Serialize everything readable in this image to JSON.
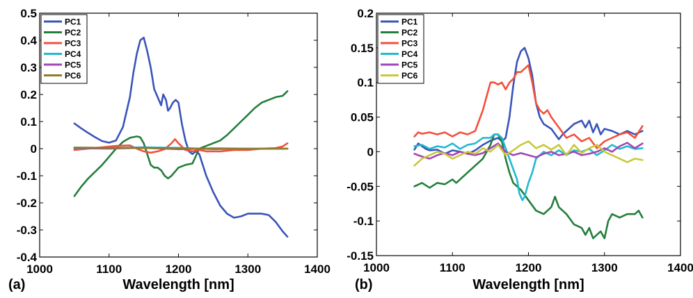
{
  "chart_data": [
    {
      "type": "line",
      "panel_label": "(a)",
      "xlabel": "Wavelength [nm]",
      "ylabel": "",
      "xlim": [
        1000,
        1400
      ],
      "ylim": [
        -0.4,
        0.5
      ],
      "xticks": [
        1000,
        1100,
        1200,
        1300,
        1400
      ],
      "xtick_labels": [
        "1000",
        "1100",
        "1200",
        "1300",
        "1400"
      ],
      "yticks": [
        -0.4,
        -0.3,
        -0.2,
        -0.1,
        0,
        0.1,
        0.2,
        0.3,
        0.4,
        0.5
      ],
      "ytick_labels": [
        "-0.4",
        "-0.3",
        "-0.2",
        "-0.1",
        "0",
        "0.1",
        "0.2",
        "0.3",
        "0.4",
        "0.5"
      ],
      "grid": false,
      "legend_position": "top-left",
      "series": [
        {
          "name": "PC1",
          "color": "#3a53b9",
          "x": [
            1050,
            1060,
            1070,
            1080,
            1090,
            1100,
            1110,
            1120,
            1130,
            1135,
            1140,
            1145,
            1150,
            1155,
            1160,
            1165,
            1170,
            1175,
            1178,
            1182,
            1185,
            1188,
            1192,
            1196,
            1200,
            1205,
            1210,
            1215,
            1220,
            1225,
            1230,
            1240,
            1250,
            1260,
            1270,
            1280,
            1290,
            1300,
            1310,
            1320,
            1330,
            1340,
            1350,
            1357
          ],
          "y": [
            0.093,
            0.075,
            0.058,
            0.042,
            0.028,
            0.022,
            0.03,
            0.08,
            0.19,
            0.28,
            0.35,
            0.4,
            0.41,
            0.36,
            0.3,
            0.22,
            0.19,
            0.16,
            0.2,
            0.18,
            0.14,
            0.15,
            0.17,
            0.18,
            0.17,
            0.09,
            0.03,
            -0.01,
            -0.02,
            -0.01,
            -0.02,
            -0.1,
            -0.16,
            -0.21,
            -0.24,
            -0.255,
            -0.25,
            -0.24,
            -0.24,
            -0.24,
            -0.245,
            -0.27,
            -0.305,
            -0.325
          ]
        },
        {
          "name": "PC2",
          "color": "#237e3a",
          "x": [
            1050,
            1060,
            1070,
            1080,
            1090,
            1100,
            1110,
            1120,
            1130,
            1140,
            1145,
            1150,
            1155,
            1160,
            1165,
            1170,
            1175,
            1180,
            1185,
            1190,
            1195,
            1200,
            1210,
            1220,
            1230,
            1240,
            1250,
            1260,
            1270,
            1280,
            1290,
            1300,
            1310,
            1320,
            1330,
            1340,
            1350,
            1357
          ],
          "y": [
            -0.175,
            -0.14,
            -0.11,
            -0.085,
            -0.06,
            -0.03,
            0.0,
            0.025,
            0.04,
            0.045,
            0.042,
            0.02,
            -0.02,
            -0.06,
            -0.07,
            -0.07,
            -0.08,
            -0.1,
            -0.11,
            -0.1,
            -0.085,
            -0.07,
            -0.06,
            -0.055,
            0.0,
            0.01,
            0.02,
            0.03,
            0.05,
            0.075,
            0.1,
            0.125,
            0.15,
            0.17,
            0.18,
            0.19,
            0.195,
            0.212
          ]
        },
        {
          "name": "PC3",
          "color": "#f2503a",
          "x": [
            1050,
            1070,
            1090,
            1110,
            1130,
            1140,
            1150,
            1160,
            1170,
            1180,
            1190,
            1195,
            1200,
            1210,
            1220,
            1230,
            1240,
            1260,
            1280,
            1300,
            1320,
            1340,
            1350,
            1357
          ],
          "y": [
            -0.005,
            0.0,
            0.005,
            0.01,
            0.012,
            0.0,
            -0.01,
            -0.015,
            -0.01,
            -0.002,
            0.02,
            0.035,
            0.02,
            -0.005,
            -0.01,
            -0.005,
            -0.01,
            -0.01,
            -0.005,
            -0.005,
            0.0,
            0.002,
            0.008,
            0.02
          ]
        },
        {
          "name": "PC4",
          "color": "#1fb9d1",
          "x": [
            1050,
            1100,
            1150,
            1200,
            1250,
            1300,
            1357
          ],
          "y": [
            0.0,
            0.002,
            0.005,
            0.003,
            -0.002,
            0.0,
            0.0
          ]
        },
        {
          "name": "PC5",
          "color": "#a246b5",
          "x": [
            1050,
            1100,
            1150,
            1200,
            1250,
            1300,
            1357
          ],
          "y": [
            0.002,
            0.0,
            0.003,
            -0.002,
            0.001,
            0.0,
            0.0
          ]
        },
        {
          "name": "PC6",
          "color": "#8f7d2a",
          "x": [
            1050,
            1100,
            1150,
            1200,
            1250,
            1300,
            1357
          ],
          "y": [
            0.004,
            0.003,
            0.002,
            0.001,
            0.0,
            -0.001,
            0.0
          ]
        }
      ]
    },
    {
      "type": "line",
      "panel_label": "(b)",
      "xlabel": "Wavelength [nm]",
      "ylabel": "",
      "xlim": [
        1000,
        1400
      ],
      "ylim": [
        -0.15,
        0.2
      ],
      "xticks": [
        1000,
        1100,
        1200,
        1300,
        1400
      ],
      "xtick_labels": [
        "1000",
        "1100",
        "1200",
        "1300",
        "1400"
      ],
      "yticks": [
        -0.15,
        -0.1,
        -0.05,
        0,
        0.05,
        0.1,
        0.15,
        0.2
      ],
      "ytick_labels": [
        "-0.15",
        "-0.1",
        "-0.05",
        "0",
        "0.05",
        "0.1",
        "0.15",
        "0.2"
      ],
      "grid": false,
      "legend_position": "top-left",
      "series": [
        {
          "name": "PC1",
          "color": "#3a53b9",
          "x": [
            1050,
            1055,
            1060,
            1065,
            1070,
            1080,
            1090,
            1100,
            1110,
            1120,
            1130,
            1140,
            1150,
            1160,
            1165,
            1170,
            1175,
            1180,
            1185,
            1190,
            1195,
            1200,
            1205,
            1210,
            1215,
            1220,
            1230,
            1240,
            1245,
            1250,
            1260,
            1270,
            1275,
            1280,
            1285,
            1290,
            1295,
            1300,
            1310,
            1320,
            1330,
            1340,
            1350
          ],
          "y": [
            0.003,
            0.012,
            0.008,
            0.004,
            0.002,
            0.003,
            -0.003,
            0.002,
            0.0,
            -0.003,
            0.002,
            0.01,
            0.016,
            0.02,
            0.015,
            0.02,
            0.05,
            0.095,
            0.13,
            0.145,
            0.15,
            0.135,
            0.11,
            0.07,
            0.05,
            0.04,
            0.033,
            0.018,
            0.025,
            0.03,
            0.04,
            0.045,
            0.035,
            0.045,
            0.028,
            0.04,
            0.025,
            0.033,
            0.03,
            0.025,
            0.03,
            0.025,
            0.03
          ]
        },
        {
          "name": "PC2",
          "color": "#237e3a",
          "x": [
            1050,
            1060,
            1070,
            1080,
            1090,
            1100,
            1105,
            1110,
            1120,
            1130,
            1140,
            1150,
            1155,
            1160,
            1165,
            1170,
            1175,
            1180,
            1190,
            1200,
            1210,
            1220,
            1230,
            1235,
            1240,
            1250,
            1260,
            1270,
            1275,
            1280,
            1285,
            1290,
            1295,
            1300,
            1305,
            1310,
            1320,
            1330,
            1340,
            1345,
            1350
          ],
          "y": [
            -0.05,
            -0.045,
            -0.052,
            -0.045,
            -0.047,
            -0.04,
            -0.045,
            -0.04,
            -0.03,
            -0.02,
            -0.01,
            0.01,
            0.025,
            0.025,
            0.015,
            -0.01,
            -0.03,
            -0.045,
            -0.055,
            -0.07,
            -0.085,
            -0.09,
            -0.08,
            -0.065,
            -0.08,
            -0.09,
            -0.105,
            -0.11,
            -0.12,
            -0.11,
            -0.125,
            -0.12,
            -0.115,
            -0.125,
            -0.1,
            -0.09,
            -0.095,
            -0.09,
            -0.09,
            -0.085,
            -0.095
          ]
        },
        {
          "name": "PC3",
          "color": "#f2503a",
          "x": [
            1050,
            1055,
            1060,
            1070,
            1080,
            1090,
            1100,
            1110,
            1120,
            1130,
            1140,
            1145,
            1150,
            1155,
            1160,
            1165,
            1170,
            1175,
            1180,
            1185,
            1190,
            1195,
            1200,
            1205,
            1210,
            1215,
            1220,
            1225,
            1230,
            1240,
            1250,
            1260,
            1270,
            1280,
            1290,
            1300,
            1310,
            1320,
            1330,
            1340,
            1350
          ],
          "y": [
            0.022,
            0.028,
            0.026,
            0.028,
            0.025,
            0.028,
            0.022,
            0.028,
            0.025,
            0.03,
            0.06,
            0.08,
            0.1,
            0.1,
            0.097,
            0.1,
            0.09,
            0.1,
            0.105,
            0.115,
            0.115,
            0.12,
            0.125,
            0.1,
            0.07,
            0.06,
            0.055,
            0.06,
            0.05,
            0.035,
            0.02,
            0.025,
            0.015,
            0.02,
            0.005,
            0.015,
            0.02,
            0.025,
            0.028,
            0.02,
            0.037
          ]
        },
        {
          "name": "PC4",
          "color": "#1fb9d1",
          "x": [
            1050,
            1060,
            1070,
            1080,
            1090,
            1100,
            1110,
            1120,
            1130,
            1140,
            1150,
            1155,
            1160,
            1165,
            1170,
            1175,
            1180,
            1185,
            1188,
            1192,
            1195,
            1200,
            1205,
            1210,
            1220,
            1230,
            1240,
            1250,
            1260,
            1270,
            1280,
            1290,
            1300,
            1310,
            1320,
            1330,
            1340,
            1350
          ],
          "y": [
            0.008,
            0.01,
            0.004,
            0.008,
            0.006,
            0.012,
            0.004,
            0.01,
            0.012,
            0.02,
            0.02,
            0.025,
            0.025,
            0.02,
            0.005,
            -0.01,
            -0.025,
            -0.04,
            -0.06,
            -0.07,
            -0.065,
            -0.045,
            -0.03,
            -0.01,
            0.0,
            -0.005,
            0.002,
            -0.005,
            0.002,
            0.0,
            0.004,
            -0.005,
            0.002,
            0.01,
            0.004,
            0.008,
            0.004,
            0.005
          ]
        },
        {
          "name": "PC5",
          "color": "#a246b5",
          "x": [
            1050,
            1060,
            1070,
            1080,
            1090,
            1100,
            1110,
            1120,
            1130,
            1140,
            1150,
            1160,
            1170,
            1180,
            1190,
            1200,
            1210,
            1220,
            1230,
            1240,
            1250,
            1260,
            1270,
            1280,
            1290,
            1300,
            1310,
            1320,
            1330,
            1340,
            1350
          ],
          "y": [
            -0.003,
            -0.007,
            -0.01,
            -0.005,
            -0.002,
            -0.005,
            0.0,
            -0.003,
            -0.005,
            -0.002,
            0.005,
            0.012,
            0.0,
            -0.005,
            -0.002,
            -0.005,
            -0.008,
            -0.003,
            0.0,
            -0.005,
            -0.003,
            0.0,
            -0.005,
            -0.003,
            0.0,
            0.005,
            0.0,
            0.008,
            0.013,
            0.005,
            0.012
          ]
        },
        {
          "name": "PC6",
          "color": "#c9c83a",
          "x": [
            1050,
            1060,
            1070,
            1080,
            1090,
            1100,
            1110,
            1120,
            1130,
            1140,
            1150,
            1160,
            1170,
            1180,
            1190,
            1200,
            1210,
            1220,
            1230,
            1240,
            1250,
            1260,
            1270,
            1280,
            1290,
            1300,
            1310,
            1320,
            1330,
            1340,
            1350
          ],
          "y": [
            -0.02,
            -0.01,
            -0.005,
            0.0,
            -0.003,
            -0.01,
            -0.005,
            0.0,
            -0.003,
            0.005,
            0.0,
            0.01,
            -0.005,
            0.002,
            0.01,
            0.015,
            0.005,
            0.01,
            0.003,
            0.01,
            -0.005,
            0.01,
            -0.002,
            0.005,
            0.01,
            0.0,
            -0.005,
            -0.01,
            -0.015,
            -0.01,
            -0.012
          ]
        }
      ]
    }
  ]
}
